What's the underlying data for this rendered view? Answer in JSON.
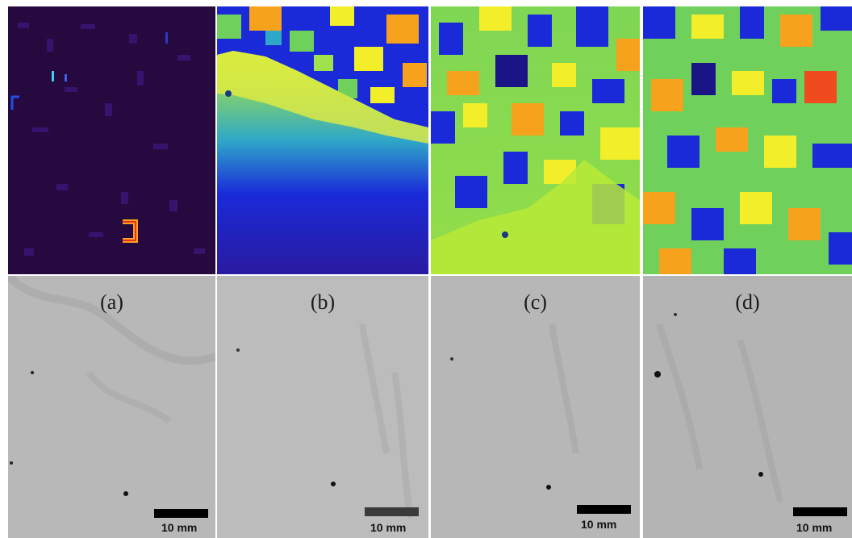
{
  "panels": [
    {
      "id": "a",
      "label": "(a)",
      "scale_text": "10 mm",
      "map_colormap": "magnitude-dark-purple",
      "scalebar_color": "#000000"
    },
    {
      "id": "b",
      "label": "(b)",
      "scale_text": "10 mm",
      "map_colormap": "jet-gradient",
      "scalebar_color": "#3a3a3a"
    },
    {
      "id": "c",
      "label": "(c)",
      "scale_text": "10 mm",
      "map_colormap": "jet-patchy",
      "scalebar_color": "#000000"
    },
    {
      "id": "d",
      "label": "(d)",
      "scale_text": "10 mm",
      "map_colormap": "jet-patchy",
      "scalebar_color": "#000000"
    }
  ],
  "colors": {
    "dark_purple": "#2a0b4a",
    "blue": "#1a2ad8",
    "dark_blue": "#1b1486",
    "green": "#6fd15c",
    "yellow": "#f2ee2a",
    "orange": "#f7a21c",
    "red": "#ef4b1f",
    "surface_gray": "#b6b6b6"
  }
}
